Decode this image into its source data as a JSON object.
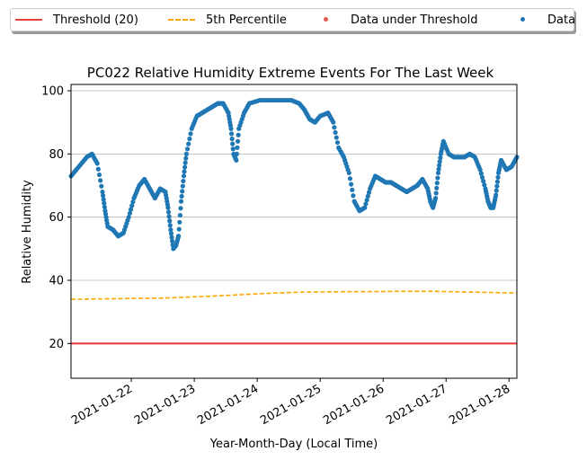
{
  "chart_data": {
    "type": "scatter",
    "title": "PC022 Relative Humidity Extreme Events For The Last Week",
    "xlabel": "Year-Month-Day (Local Time)",
    "ylabel": "Relative Humidity",
    "xlim": [
      "2021-01-21T01:00",
      "2021-01-28T03:00"
    ],
    "ylim": [
      9,
      102
    ],
    "yticks": [
      20,
      40,
      60,
      80,
      100
    ],
    "xticks": [
      "2021-01-22",
      "2021-01-23",
      "2021-01-24",
      "2021-01-25",
      "2021-01-26",
      "2021-01-27",
      "2021-01-28"
    ],
    "grid": "horizontal",
    "legend": {
      "placement": "top, above plot",
      "columns": 4
    },
    "series": [
      {
        "name": "Threshold (20)",
        "kind": "line",
        "color": "#e8413c",
        "y": 20
      },
      {
        "name": "5th Percentile",
        "kind": "dashed-line",
        "color": "#ffa500",
        "points": [
          [
            "2021-01-21T01:00",
            34.0
          ],
          [
            "2021-01-22T13:00",
            34.4
          ],
          [
            "2021-01-23T07:00",
            35.0
          ],
          [
            "2021-01-24T07:00",
            36.0
          ],
          [
            "2021-01-24T19:00",
            36.3
          ],
          [
            "2021-01-26T07:00",
            36.5
          ],
          [
            "2021-01-26T19:00",
            36.5
          ],
          [
            "2021-01-28T03:00",
            36.0
          ]
        ]
      },
      {
        "name": "Data under Threshold",
        "kind": "scatter",
        "color": "#e35a4d",
        "points": []
      },
      {
        "name": "Data",
        "kind": "scatter",
        "color": "#1f77b4",
        "points": [
          [
            "2021-01-21T01:00",
            73
          ],
          [
            "2021-01-21T04:00",
            76
          ],
          [
            "2021-01-21T07:00",
            79
          ],
          [
            "2021-01-21T09:00",
            80
          ],
          [
            "2021-01-21T11:00",
            77
          ],
          [
            "2021-01-21T13:00",
            68
          ],
          [
            "2021-01-21T14:00",
            62
          ],
          [
            "2021-01-21T15:00",
            57
          ],
          [
            "2021-01-21T17:00",
            56
          ],
          [
            "2021-01-21T19:00",
            54
          ],
          [
            "2021-01-21T21:00",
            55
          ],
          [
            "2021-01-21T23:00",
            60
          ],
          [
            "2021-01-22T01:00",
            66
          ],
          [
            "2021-01-22T03:00",
            70
          ],
          [
            "2021-01-22T05:00",
            72
          ],
          [
            "2021-01-22T07:00",
            69
          ],
          [
            "2021-01-22T09:00",
            66
          ],
          [
            "2021-01-22T11:00",
            69
          ],
          [
            "2021-01-22T13:00",
            68
          ],
          [
            "2021-01-22T14:00",
            63
          ],
          [
            "2021-01-22T15:00",
            56
          ],
          [
            "2021-01-22T16:00",
            50
          ],
          [
            "2021-01-22T17:00",
            51
          ],
          [
            "2021-01-22T18:00",
            54
          ],
          [
            "2021-01-22T19:00",
            65
          ],
          [
            "2021-01-22T20:00",
            73
          ],
          [
            "2021-01-22T21:00",
            80
          ],
          [
            "2021-01-22T23:00",
            88
          ],
          [
            "2021-01-23T01:00",
            92
          ],
          [
            "2021-01-23T03:00",
            93
          ],
          [
            "2021-01-23T05:00",
            94
          ],
          [
            "2021-01-23T07:00",
            95
          ],
          [
            "2021-01-23T09:00",
            96
          ],
          [
            "2021-01-23T11:00",
            96
          ],
          [
            "2021-01-23T13:00",
            93
          ],
          [
            "2021-01-23T14:00",
            88
          ],
          [
            "2021-01-23T15:00",
            80
          ],
          [
            "2021-01-23T16:00",
            78
          ],
          [
            "2021-01-23T17:00",
            88
          ],
          [
            "2021-01-23T19:00",
            93
          ],
          [
            "2021-01-23T21:00",
            96
          ],
          [
            "2021-01-24T01:00",
            97
          ],
          [
            "2021-01-24T05:00",
            97
          ],
          [
            "2021-01-24T09:00",
            97
          ],
          [
            "2021-01-24T13:00",
            97
          ],
          [
            "2021-01-24T16:00",
            96
          ],
          [
            "2021-01-24T18:00",
            94
          ],
          [
            "2021-01-24T20:00",
            91
          ],
          [
            "2021-01-24T22:00",
            90
          ],
          [
            "2021-01-25T00:00",
            92
          ],
          [
            "2021-01-25T03:00",
            93
          ],
          [
            "2021-01-25T05:00",
            90
          ],
          [
            "2021-01-25T07:00",
            82
          ],
          [
            "2021-01-25T09:00",
            79
          ],
          [
            "2021-01-25T11:00",
            74
          ],
          [
            "2021-01-25T13:00",
            65
          ],
          [
            "2021-01-25T15:00",
            62
          ],
          [
            "2021-01-25T17:00",
            63
          ],
          [
            "2021-01-25T19:00",
            69
          ],
          [
            "2021-01-25T21:00",
            73
          ],
          [
            "2021-01-25T23:00",
            72
          ],
          [
            "2021-01-26T01:00",
            71
          ],
          [
            "2021-01-26T03:00",
            71
          ],
          [
            "2021-01-26T05:00",
            70
          ],
          [
            "2021-01-26T07:00",
            69
          ],
          [
            "2021-01-26T09:00",
            68
          ],
          [
            "2021-01-26T11:00",
            69
          ],
          [
            "2021-01-26T13:00",
            70
          ],
          [
            "2021-01-26T15:00",
            72
          ],
          [
            "2021-01-26T17:00",
            69
          ],
          [
            "2021-01-26T18:00",
            65
          ],
          [
            "2021-01-26T19:00",
            63
          ],
          [
            "2021-01-26T20:00",
            66
          ],
          [
            "2021-01-26T21:00",
            74
          ],
          [
            "2021-01-26T22:00",
            80
          ],
          [
            "2021-01-26T23:00",
            84
          ],
          [
            "2021-01-27T01:00",
            80
          ],
          [
            "2021-01-27T03:00",
            79
          ],
          [
            "2021-01-27T05:00",
            79
          ],
          [
            "2021-01-27T07:00",
            79
          ],
          [
            "2021-01-27T09:00",
            80
          ],
          [
            "2021-01-27T11:00",
            79
          ],
          [
            "2021-01-27T13:00",
            75
          ],
          [
            "2021-01-27T15:00",
            69
          ],
          [
            "2021-01-27T16:00",
            65
          ],
          [
            "2021-01-27T17:00",
            63
          ],
          [
            "2021-01-27T18:00",
            63
          ],
          [
            "2021-01-27T19:00",
            67
          ],
          [
            "2021-01-27T20:00",
            74
          ],
          [
            "2021-01-27T21:00",
            78
          ],
          [
            "2021-01-27T23:00",
            75
          ],
          [
            "2021-01-28T01:00",
            76
          ],
          [
            "2021-01-28T03:00",
            79
          ]
        ]
      }
    ]
  }
}
